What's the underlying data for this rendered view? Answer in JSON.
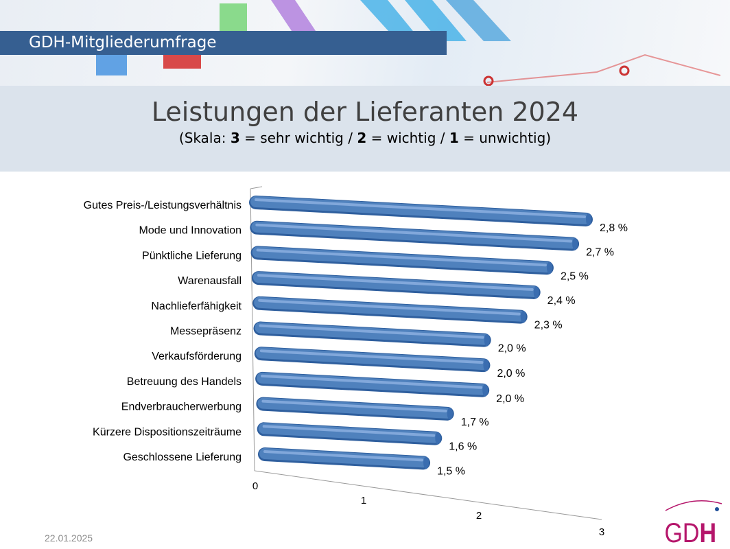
{
  "header": {
    "section_title": "GDH-Mitgliederumfrage"
  },
  "slide": {
    "title": "Leistungen der Lieferanten 2024",
    "subtitle": {
      "open": "(Skala:  ",
      "v3": "3",
      "t3": " = sehr wichtig / ",
      "v2": "2",
      "t2": " = wichtig / ",
      "v1": "1",
      "t1": " = unwichtig)"
    }
  },
  "footer": {
    "date": "22.01.2025",
    "logo_text": "GDH"
  },
  "colors": {
    "bar": "#4f81bd",
    "banner": "#365f91",
    "logo": "#b5166b"
  },
  "chart_data": {
    "type": "bar",
    "orientation": "horizontal",
    "style": "3d-cylinder",
    "title": "Leistungen der Lieferanten 2024",
    "categories": [
      "Gutes Preis-/Leistungsverhältnis",
      "Mode und Innovation",
      "Pünktliche Lieferung",
      "Warenausfall",
      "Nachlieferfähigkeit",
      "Messepräsenz",
      "Verkaufsförderung",
      "Betreuung des Handels",
      "Endverbraucherwerbung",
      "Kürzere Dispositionszeiträume",
      "Geschlossene Lieferung"
    ],
    "values": [
      2.8,
      2.7,
      2.5,
      2.4,
      2.3,
      2.0,
      2.0,
      2.0,
      1.7,
      1.6,
      1.5
    ],
    "data_labels": [
      "2,8 %",
      "2,7 %",
      "2,5 %",
      "2,4 %",
      "2,3 %",
      "2,0 %",
      "2,0 %",
      "2,0 %",
      "1,7 %",
      "1,6 %",
      "1,5 %"
    ],
    "xticks": [
      "0",
      "1",
      "2",
      "3"
    ],
    "xlim": [
      0,
      3
    ],
    "grid": false,
    "legend": "none"
  }
}
